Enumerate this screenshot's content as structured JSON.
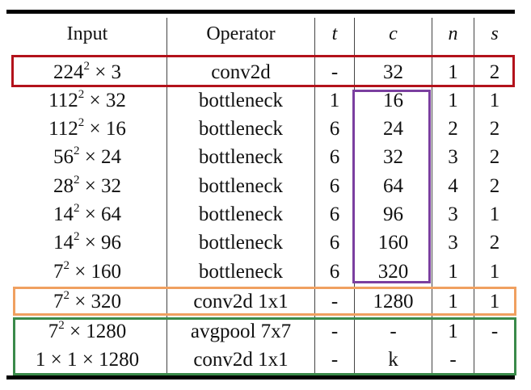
{
  "table": {
    "headers": [
      "Input",
      "Operator",
      "t",
      "c",
      "n",
      "s"
    ],
    "rows": [
      {
        "input_base": "224",
        "input_exp": "2",
        "input_rest": " × 3",
        "operator": "conv2d",
        "t": "-",
        "c": "32",
        "n": "1",
        "s": "2"
      },
      {
        "input_base": "112",
        "input_exp": "2",
        "input_rest": " × 32",
        "operator": "bottleneck",
        "t": "1",
        "c": "16",
        "n": "1",
        "s": "1"
      },
      {
        "input_base": "112",
        "input_exp": "2",
        "input_rest": " × 16",
        "operator": "bottleneck",
        "t": "6",
        "c": "24",
        "n": "2",
        "s": "2"
      },
      {
        "input_base": "56",
        "input_exp": "2",
        "input_rest": " × 24",
        "operator": "bottleneck",
        "t": "6",
        "c": "32",
        "n": "3",
        "s": "2"
      },
      {
        "input_base": "28",
        "input_exp": "2",
        "input_rest": " × 32",
        "operator": "bottleneck",
        "t": "6",
        "c": "64",
        "n": "4",
        "s": "2"
      },
      {
        "input_base": "14",
        "input_exp": "2",
        "input_rest": " × 64",
        "operator": "bottleneck",
        "t": "6",
        "c": "96",
        "n": "3",
        "s": "1"
      },
      {
        "input_base": "14",
        "input_exp": "2",
        "input_rest": " × 96",
        "operator": "bottleneck",
        "t": "6",
        "c": "160",
        "n": "3",
        "s": "2"
      },
      {
        "input_base": "7",
        "input_exp": "2",
        "input_rest": " × 160",
        "operator": "bottleneck",
        "t": "6",
        "c": "320",
        "n": "1",
        "s": "1"
      },
      {
        "input_base": "7",
        "input_exp": "2",
        "input_rest": " × 320",
        "operator": "conv2d 1x1",
        "t": "-",
        "c": "1280",
        "n": "1",
        "s": "1"
      },
      {
        "input_base": "7",
        "input_exp": "2",
        "input_rest": " × 1280",
        "operator": "avgpool 7x7",
        "t": "-",
        "c": "-",
        "n": "1",
        "s": "-"
      },
      {
        "input_base": "1 × 1 × 1280",
        "input_exp": "",
        "input_rest": "",
        "operator": "conv2d 1x1",
        "t": "-",
        "c": "k",
        "n": "-",
        "s": ""
      }
    ]
  },
  "highlight_colors": {
    "first_conv": "#b3121b",
    "bottleneck_c": "#7b3fa0",
    "final_conv": "#f0a060",
    "classifier": "#3a8a4a"
  }
}
